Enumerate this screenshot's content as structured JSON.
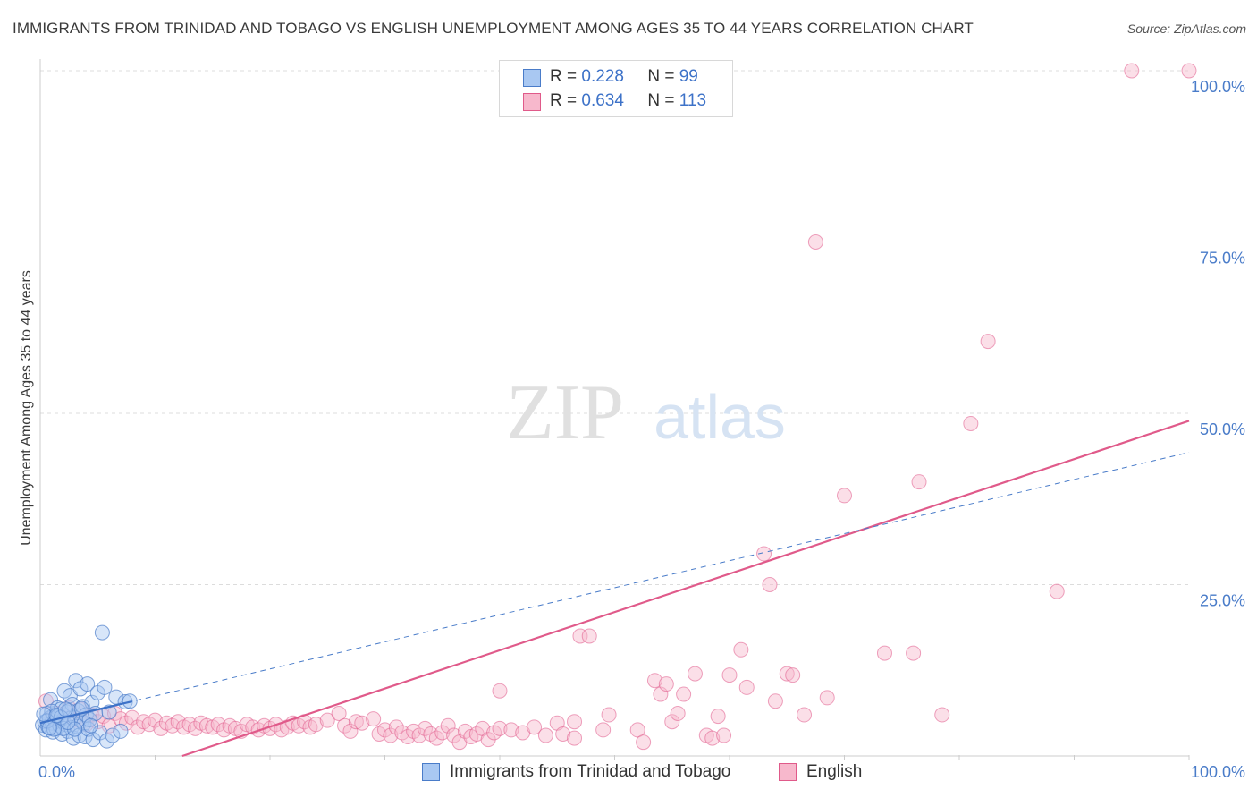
{
  "title": "IMMIGRANTS FROM TRINIDAD AND TOBAGO VS ENGLISH UNEMPLOYMENT AMONG AGES 35 TO 44 YEARS CORRELATION CHART",
  "source": "Source: ZipAtlas.com",
  "watermark": {
    "zip": "ZIP",
    "atlas": "atlas"
  },
  "legend": {
    "r_label": "R =",
    "n_label": "N =",
    "series1": {
      "r": "0.228",
      "n": "99"
    },
    "series2": {
      "r": "0.634",
      "n": "113"
    }
  },
  "bottom_legend": {
    "series1": "Immigrants from Trinidad and Tobago",
    "series2": "English"
  },
  "colors": {
    "blue_fill": "#a9c8f2",
    "blue_stroke": "#4a7cc9",
    "pink_fill": "#f7b8cc",
    "pink_stroke": "#e05a8a",
    "tick_text": "#4a7cc9"
  },
  "chart_data": {
    "type": "scatter",
    "title": "IMMIGRANTS FROM TRINIDAD AND TOBAGO VS ENGLISH UNEMPLOYMENT AMONG AGES 35 TO 44 YEARS CORRELATION CHART",
    "xlabel": "",
    "ylabel": "Unemployment Among Ages 35 to 44 years",
    "xlim": [
      0,
      100
    ],
    "ylim": [
      0,
      100
    ],
    "x_tick_labels": [
      "0.0%",
      "100.0%"
    ],
    "y_tick_labels": [
      "25.0%",
      "50.0%",
      "75.0%",
      "100.0%"
    ],
    "y_ticks": [
      25,
      50,
      75,
      100
    ],
    "series": [
      {
        "name": "Immigrants from Trinidad and Tobago",
        "r": 0.228,
        "n": 99,
        "trend": {
          "x0": 0,
          "y0": 4.8,
          "x1": 100,
          "y1": 44.3,
          "solid_until_x": 8
        },
        "points": [
          [
            0.2,
            4.5
          ],
          [
            0.4,
            5.0
          ],
          [
            0.5,
            3.8
          ],
          [
            0.6,
            6.2
          ],
          [
            0.7,
            4.2
          ],
          [
            0.8,
            5.5
          ],
          [
            0.9,
            8.2
          ],
          [
            1.0,
            4.8
          ],
          [
            1.1,
            3.5
          ],
          [
            1.2,
            6.0
          ],
          [
            1.3,
            5.2
          ],
          [
            1.4,
            4.0
          ],
          [
            1.5,
            7.0
          ],
          [
            1.6,
            5.8
          ],
          [
            1.7,
            4.4
          ],
          [
            1.8,
            6.8
          ],
          [
            1.9,
            3.2
          ],
          [
            2.0,
            5.0
          ],
          [
            2.1,
            9.5
          ],
          [
            2.2,
            4.6
          ],
          [
            2.3,
            6.4
          ],
          [
            2.4,
            3.6
          ],
          [
            2.5,
            5.4
          ],
          [
            2.6,
            8.8
          ],
          [
            2.7,
            4.1
          ],
          [
            2.8,
            7.5
          ],
          [
            2.9,
            2.6
          ],
          [
            3.0,
            5.6
          ],
          [
            3.1,
            11.0
          ],
          [
            3.2,
            4.3
          ],
          [
            3.3,
            6.6
          ],
          [
            3.4,
            3.0
          ],
          [
            3.5,
            9.8
          ],
          [
            3.6,
            5.1
          ],
          [
            3.7,
            7.2
          ],
          [
            3.8,
            4.7
          ],
          [
            3.9,
            2.8
          ],
          [
            4.0,
            6.0
          ],
          [
            4.1,
            10.5
          ],
          [
            4.2,
            3.9
          ],
          [
            4.3,
            5.3
          ],
          [
            4.5,
            7.8
          ],
          [
            4.6,
            2.4
          ],
          [
            4.8,
            6.2
          ],
          [
            5.0,
            9.2
          ],
          [
            5.2,
            3.4
          ],
          [
            5.4,
            18.0
          ],
          [
            5.6,
            10.0
          ],
          [
            5.8,
            2.2
          ],
          [
            6.0,
            6.4
          ],
          [
            6.3,
            3.0
          ],
          [
            6.6,
            8.6
          ],
          [
            7.0,
            3.6
          ],
          [
            7.4,
            7.9
          ],
          [
            7.8,
            8.0
          ],
          [
            1.0,
            6.5
          ],
          [
            1.5,
            5.8
          ],
          [
            2.0,
            4.0
          ],
          [
            2.5,
            6.6
          ],
          [
            3.0,
            3.9
          ],
          [
            0.6,
            5.1
          ],
          [
            1.2,
            3.9
          ],
          [
            1.8,
            5.6
          ],
          [
            2.4,
            4.9
          ],
          [
            3.6,
            6.9
          ],
          [
            4.4,
            4.4
          ],
          [
            0.3,
            6.1
          ],
          [
            0.8,
            4.1
          ],
          [
            1.4,
            5.9
          ],
          [
            2.2,
            6.8
          ]
        ]
      },
      {
        "name": "English",
        "r": 0.634,
        "n": 113,
        "trend": {
          "x0": 0,
          "y0": -6.9,
          "x1": 100,
          "y1": 48.9
        },
        "points": [
          [
            0.5,
            8.0
          ],
          [
            1.0,
            5.5
          ],
          [
            1.5,
            6.2
          ],
          [
            2.0,
            4.8
          ],
          [
            2.5,
            7.0
          ],
          [
            3.0,
            5.2
          ],
          [
            3.5,
            6.8
          ],
          [
            4.0,
            4.6
          ],
          [
            4.5,
            6.0
          ],
          [
            5.0,
            5.0
          ],
          [
            5.5,
            5.8
          ],
          [
            6.0,
            4.4
          ],
          [
            6.5,
            6.2
          ],
          [
            7.0,
            5.4
          ],
          [
            7.5,
            4.8
          ],
          [
            8.0,
            5.6
          ],
          [
            8.5,
            4.2
          ],
          [
            9.0,
            5.0
          ],
          [
            9.5,
            4.6
          ],
          [
            10.0,
            5.2
          ],
          [
            10.5,
            4.0
          ],
          [
            11.0,
            4.8
          ],
          [
            11.5,
            4.4
          ],
          [
            12.0,
            5.0
          ],
          [
            12.5,
            4.2
          ],
          [
            13.0,
            4.6
          ],
          [
            13.5,
            4.0
          ],
          [
            14.0,
            4.8
          ],
          [
            14.5,
            4.4
          ],
          [
            15.0,
            4.2
          ],
          [
            15.5,
            4.6
          ],
          [
            16.0,
            3.8
          ],
          [
            16.5,
            4.4
          ],
          [
            17.0,
            4.0
          ],
          [
            17.5,
            3.6
          ],
          [
            18.0,
            4.6
          ],
          [
            18.5,
            4.2
          ],
          [
            19.0,
            3.8
          ],
          [
            19.5,
            4.4
          ],
          [
            20.0,
            4.0
          ],
          [
            20.5,
            4.6
          ],
          [
            21.0,
            3.8
          ],
          [
            21.5,
            4.2
          ],
          [
            22.0,
            4.8
          ],
          [
            22.5,
            4.4
          ],
          [
            23.0,
            5.0
          ],
          [
            23.5,
            4.2
          ],
          [
            24.0,
            4.6
          ],
          [
            25.0,
            5.2
          ],
          [
            26.0,
            6.2
          ],
          [
            26.5,
            4.4
          ],
          [
            27.0,
            3.6
          ],
          [
            27.5,
            5.0
          ],
          [
            28.0,
            4.8
          ],
          [
            29.0,
            5.4
          ],
          [
            29.5,
            3.2
          ],
          [
            30.0,
            3.8
          ],
          [
            30.5,
            3.0
          ],
          [
            31.0,
            4.2
          ],
          [
            31.5,
            3.4
          ],
          [
            32.0,
            2.8
          ],
          [
            32.5,
            3.6
          ],
          [
            33.0,
            3.0
          ],
          [
            33.5,
            4.0
          ],
          [
            34.0,
            3.2
          ],
          [
            34.5,
            2.6
          ],
          [
            35.0,
            3.4
          ],
          [
            35.5,
            4.4
          ],
          [
            36.0,
            3.0
          ],
          [
            36.5,
            2.0
          ],
          [
            37.0,
            3.6
          ],
          [
            37.5,
            2.8
          ],
          [
            38.0,
            3.2
          ],
          [
            38.5,
            4.0
          ],
          [
            39.0,
            2.4
          ],
          [
            39.5,
            3.4
          ],
          [
            40.0,
            4.0
          ],
          [
            41.0,
            3.8
          ],
          [
            42.0,
            3.4
          ],
          [
            43.0,
            4.2
          ],
          [
            44.0,
            3.0
          ],
          [
            45.0,
            4.8
          ],
          [
            45.5,
            3.2
          ],
          [
            46.5,
            2.6
          ],
          [
            47.0,
            17.5
          ],
          [
            47.8,
            17.5
          ],
          [
            49.0,
            3.8
          ],
          [
            49.5,
            6.0
          ],
          [
            40.0,
            9.5
          ],
          [
            46.5,
            5.0
          ],
          [
            52.0,
            3.8
          ],
          [
            52.5,
            2.0
          ],
          [
            53.5,
            11.0
          ],
          [
            54.0,
            9.0
          ],
          [
            54.5,
            10.5
          ],
          [
            55.0,
            5.0
          ],
          [
            55.5,
            6.2
          ],
          [
            56.0,
            9.0
          ],
          [
            57.0,
            12.0
          ],
          [
            58.0,
            3.0
          ],
          [
            58.5,
            2.6
          ],
          [
            59.0,
            5.8
          ],
          [
            59.5,
            3.0
          ],
          [
            60.0,
            11.8
          ],
          [
            61.0,
            15.5
          ],
          [
            61.5,
            10.0
          ],
          [
            63.0,
            29.5
          ],
          [
            63.5,
            25.0
          ],
          [
            64.0,
            8.0
          ],
          [
            65.0,
            12.0
          ],
          [
            65.5,
            11.8
          ],
          [
            66.5,
            6.0
          ],
          [
            67.5,
            75.0
          ],
          [
            68.5,
            8.5
          ],
          [
            70.0,
            38.0
          ],
          [
            73.5,
            15.0
          ],
          [
            76.0,
            15.0
          ],
          [
            76.5,
            40.0
          ],
          [
            78.5,
            6.0
          ],
          [
            81.0,
            48.5
          ],
          [
            82.5,
            60.5
          ],
          [
            88.5,
            24.0
          ],
          [
            95.0,
            100.0
          ],
          [
            100.0,
            100.0
          ]
        ]
      }
    ]
  }
}
